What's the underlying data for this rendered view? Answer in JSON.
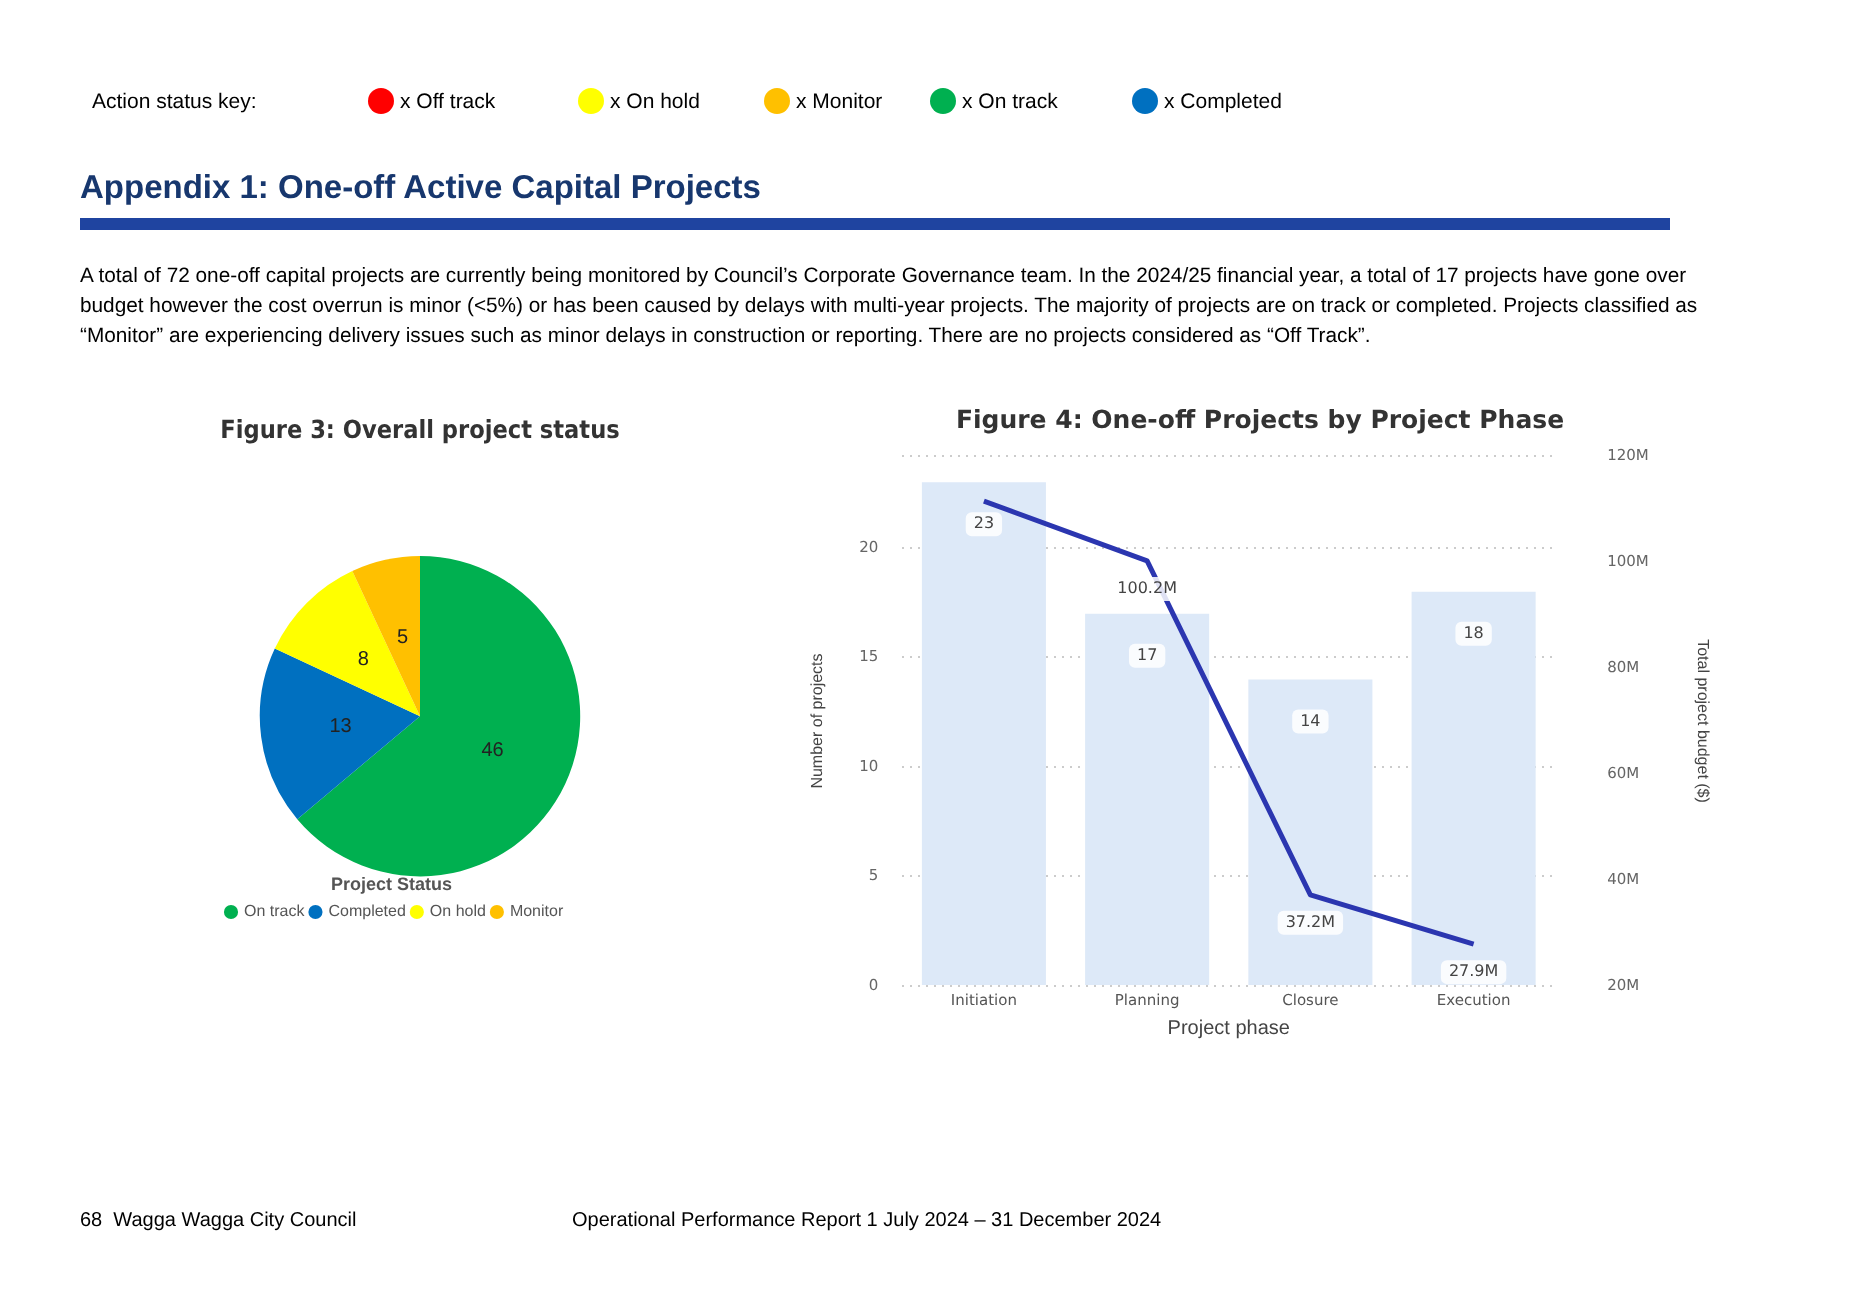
{
  "chart_data": [
    {
      "type": "other",
      "title": "Appendix 1: One-off Active Capital Projects",
      "annotations": [
        "Action status key:",
        "x Off track",
        "x On hold",
        "x Monitor",
        "x On track",
        "x Completed",
        "A total of 72 one-off capital projects are currently being monitored by Council’s Corporate Governance team. In the 2024/25 financial year, a total of 17 projects have gone over budget however the cost overrun is minor (<5%) or has been caused by delays with multi-year projects. The majority of projects are on track or completed. Projects classified as “Monitor” are experiencing delivery issues such as minor delays in construction or reporting. There are no projects considered as “Off Track”.",
        "68  Wagga Wagga City Council",
        "Operational Performance Report 1 July 2024 – 31 December 2024"
      ]
    },
    {
      "type": "pie",
      "title": "Figure 3: Overall project status",
      "categories": [
        "On track",
        "Completed",
        "On hold",
        "Monitor"
      ],
      "values": [
        46,
        13,
        8,
        5
      ],
      "colors": [
        "#00b050",
        "#0070c0",
        "#ffff00",
        "#ffc000"
      ],
      "data_labels": true,
      "legend": "bottom",
      "legend_title": "Project Status"
    },
    {
      "type": "bar",
      "title": "Figure 4: One-off Projects by Project Phase",
      "xlabel": "Project phase",
      "ylabel": "Number of projects",
      "y2label": "Total project budget ($)",
      "categories": [
        "Initiation",
        "Planning",
        "Closure",
        "Execution"
      ],
      "series": [
        {
          "type": "bar",
          "color": "#dde9f8",
          "values": [
            23,
            17,
            14,
            18
          ],
          "value_labels": [
            "23",
            "17",
            "14",
            "18"
          ]
        },
        {
          "type": "line",
          "axis": "y2",
          "color": "#2b36b0",
          "values": [
            111.5,
            100.2,
            37.2,
            27.9
          ],
          "value_labels": [
            null,
            "100.2M",
            "37.2M",
            "27.9M"
          ]
        }
      ],
      "ylim": [
        0,
        24.2
      ],
      "yticks": [
        0,
        5,
        10,
        15,
        20
      ],
      "y2lim": [
        20,
        120
      ],
      "y2ticks": [
        {
          "value": 20,
          "label": "20M"
        },
        {
          "value": 40,
          "label": "40M"
        },
        {
          "value": 60,
          "label": "60M"
        },
        {
          "value": 80,
          "label": "80M"
        },
        {
          "value": 100,
          "label": "100M"
        },
        {
          "value": 120,
          "label": "120M"
        }
      ],
      "grid": "y",
      "legend": false
    }
  ]
}
